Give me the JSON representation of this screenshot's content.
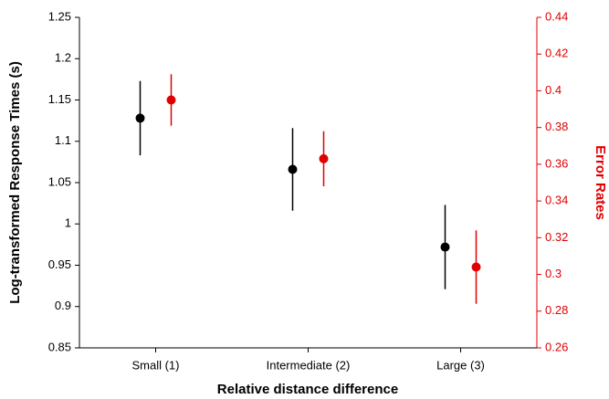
{
  "chart_data": {
    "type": "errorbar",
    "xlabel": "Relative distance difference",
    "ylabel": "Log-transformed Response Times (s)",
    "y2label": "Error Rates",
    "categories": [
      "Small (1)",
      "Intermediate (2)",
      "Large (3)"
    ],
    "series": [
      {
        "color": "#000000",
        "values": [
          1.128,
          1.066,
          0.972
        ],
        "errors": [
          0.045,
          0.05,
          0.051
        ]
      },
      {
        "color": "#e00000",
        "axis": "y2",
        "values": [
          0.395,
          0.363,
          0.304
        ],
        "errors": [
          0.014,
          0.015,
          0.02
        ]
      }
    ],
    "ylim": [
      0.85,
      1.25
    ],
    "yticks": [
      0.85,
      0.9,
      0.95,
      1,
      1.05,
      1.1,
      1.15,
      1.2,
      1.25
    ],
    "y2lim": [
      0.26,
      0.44
    ],
    "y2ticks": [
      0.26,
      0.28,
      0.3,
      0.32,
      0.34,
      0.36,
      0.38,
      0.4,
      0.42,
      0.44
    ],
    "y2color": "#e00000"
  }
}
